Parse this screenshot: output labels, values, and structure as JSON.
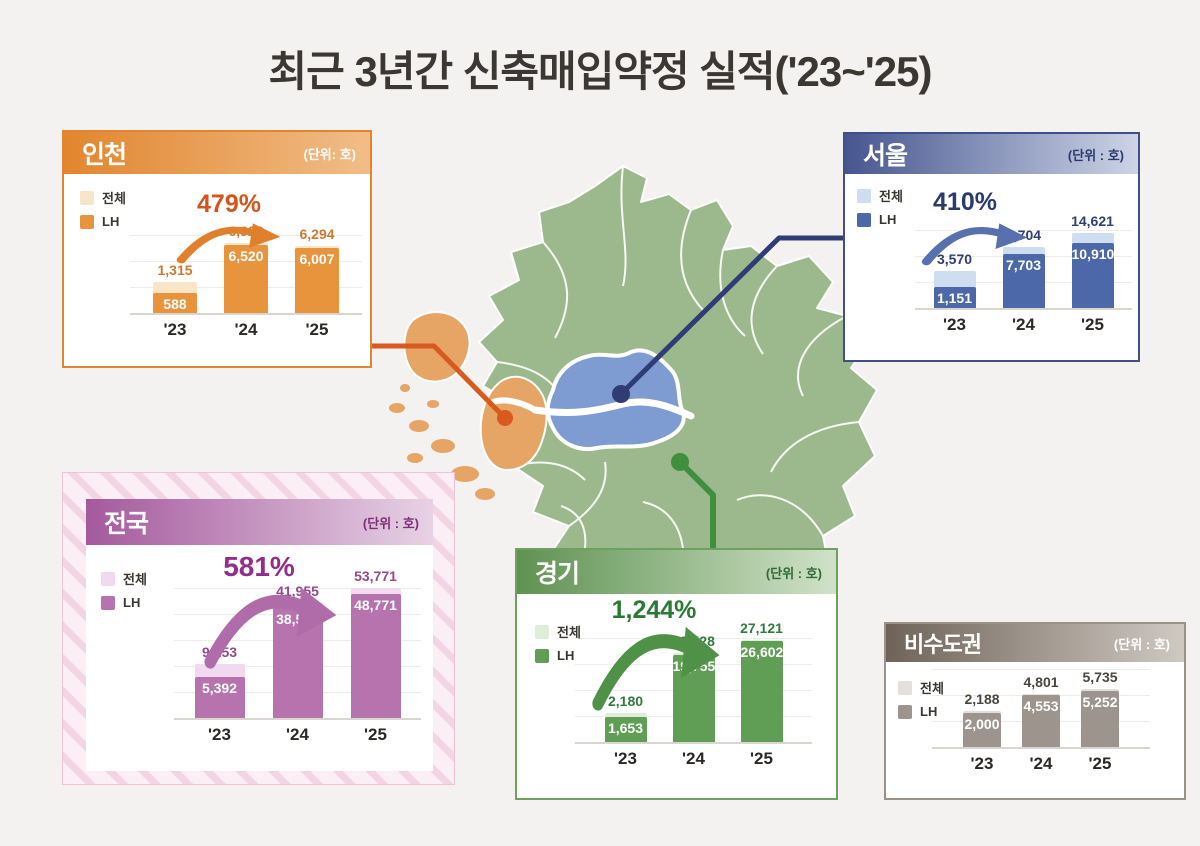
{
  "title": "최근 3년간 신축매입약정 실적('23~'25)",
  "map": {
    "regions": [
      {
        "id": "gyeonggi",
        "fill": "#9CB98D"
      },
      {
        "id": "seoul",
        "fill": "#7E9CD2"
      },
      {
        "id": "incheon",
        "fill": "#E6A465"
      }
    ],
    "connector_colors": {
      "incheon": "#D85A1F",
      "seoul": "#303C74",
      "gyeonggi": "#3F8F3F"
    }
  },
  "chart_data": [
    {
      "type": "bar",
      "id": "incheon",
      "region_label": "인천",
      "unit_label": "(단위: 호)",
      "growth_label": "479%",
      "legend": [
        "전체",
        "LH"
      ],
      "categories": [
        "'23",
        "'24",
        "'25"
      ],
      "series": [
        {
          "name": "전체",
          "values": [
            1315,
            6922,
            6294
          ]
        },
        {
          "name": "LH",
          "values": [
            588,
            6520,
            6007
          ]
        }
      ],
      "colors": {
        "header_from": "#E1862F",
        "header_to": "#F1BD87",
        "border": "#E1862F",
        "bar_total": "#F9E6C8",
        "bar_lh": "#E8943D",
        "pct": "#D4541C",
        "label": "#CE7A2E",
        "unit_text": "#FFFFFF",
        "arrow": "#E0802C"
      }
    },
    {
      "type": "bar",
      "id": "seoul",
      "region_label": "서울",
      "unit_label": "(단위 : 호)",
      "growth_label": "410%",
      "legend": [
        "전체",
        "LH"
      ],
      "categories": [
        "'23",
        "'24",
        "'25"
      ],
      "series": [
        {
          "name": "전체",
          "values": [
            3570,
            9704,
            14621
          ]
        },
        {
          "name": "LH",
          "values": [
            1151,
            7703,
            10910
          ]
        }
      ],
      "colors": {
        "header_from": "#46568F",
        "header_to": "#CDD4E6",
        "border": "#3F4F8A",
        "bar_total": "#CFDDF0",
        "bar_lh": "#4C68A9",
        "pct": "#2B3A6E",
        "label": "#2F3F70",
        "unit_text": "#2B3A6E",
        "arrow": "#5871AE"
      }
    },
    {
      "type": "bar",
      "id": "jeonguk",
      "region_label": "전국",
      "unit_label": "(단위 : 호)",
      "growth_label": "581%",
      "legend": [
        "전체",
        "LH"
      ],
      "categories": [
        "'23",
        "'24",
        "'25"
      ],
      "series": [
        {
          "name": "전체",
          "values": [
            9253,
            41955,
            53771
          ]
        },
        {
          "name": "LH",
          "values": [
            5392,
            38531,
            48771
          ]
        }
      ],
      "colors": {
        "header_from": "#A4599C",
        "header_to": "#E7D2E5",
        "border": "#FFFFFF",
        "bar_total": "#F1DAEF",
        "bar_lh": "#B673AE",
        "pct": "#922D8C",
        "label": "#914A8B",
        "unit_text": "#7C2F77",
        "arrow": "#B06CA9"
      }
    },
    {
      "type": "bar",
      "id": "gyeonggi",
      "region_label": "경기",
      "unit_label": "(단위 : 호)",
      "growth_label": "1,244%",
      "legend": [
        "전체",
        "LH"
      ],
      "categories": [
        "'23",
        "'24",
        "'25"
      ],
      "series": [
        {
          "name": "전체",
          "values": [
            2180,
            20528,
            27121
          ]
        },
        {
          "name": "LH",
          "values": [
            1653,
            19755,
            26602
          ]
        }
      ],
      "colors": {
        "header_from": "#5F9252",
        "header_to": "#D0E2C8",
        "border": "#6CA25E",
        "bar_total": "#DFEED8",
        "bar_lh": "#609D55",
        "pct": "#2A7A36",
        "label": "#2F7A3C",
        "unit_text": "#2D6B35",
        "arrow": "#4E9147"
      }
    },
    {
      "type": "bar",
      "id": "bisudogwon",
      "region_label": "비수도권",
      "unit_label": "(단위 : 호)",
      "growth_label": "",
      "legend": [
        "전체",
        "LH"
      ],
      "categories": [
        "'23",
        "'24",
        "'25"
      ],
      "series": [
        {
          "name": "전체",
          "values": [
            2188,
            4801,
            5735
          ]
        },
        {
          "name": "LH",
          "values": [
            2000,
            4553,
            5252
          ]
        }
      ],
      "colors": {
        "header_from": "#6F6358",
        "header_to": "#CFC9C2",
        "border": "#9A9189",
        "bar_total": "#E3DFDA",
        "bar_lh": "#9D958D",
        "pct": "#4B453F",
        "label": "#4B453F",
        "unit_text": "#FFFFFF",
        "arrow": "#9D958D"
      }
    }
  ]
}
